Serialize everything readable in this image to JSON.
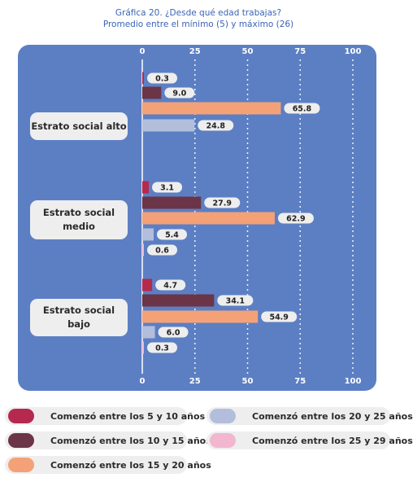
{
  "title": {
    "line1": "Gráfica 20. ¿Desde qué edad trabajas?",
    "line2": "Promedio entre el mínimo (5) y máximo (26)"
  },
  "chart_data": {
    "type": "bar",
    "orientation": "horizontal",
    "xlim": [
      0,
      100
    ],
    "ticks": [
      0,
      25,
      50,
      75,
      100
    ],
    "grid": true,
    "legend_position": "bottom",
    "categories": [
      {
        "label": "Estrato social alto",
        "values": [
          0.3,
          9.0,
          65.8,
          24.8,
          null
        ]
      },
      {
        "label": "Estrato social medio",
        "values": [
          3.1,
          27.9,
          62.9,
          5.4,
          0.6
        ]
      },
      {
        "label": "Estrato social bajo",
        "values": [
          4.7,
          34.1,
          54.9,
          6.0,
          0.3
        ]
      }
    ],
    "series": [
      {
        "name": "Comenzó entre los 5 y 10 años",
        "color": "#b5294f"
      },
      {
        "name": "Comenzó entre los 10 y 15 años",
        "color": "#6b3447"
      },
      {
        "name": "Comenzó entre los 15 y 20 años",
        "color": "#f4a177"
      },
      {
        "name": "Comenzó entre los 20 y 25 años",
        "color": "#b3bedc"
      },
      {
        "name": "Comenzó entre los 25 y 29 años",
        "color": "#f2b6cf"
      }
    ]
  }
}
